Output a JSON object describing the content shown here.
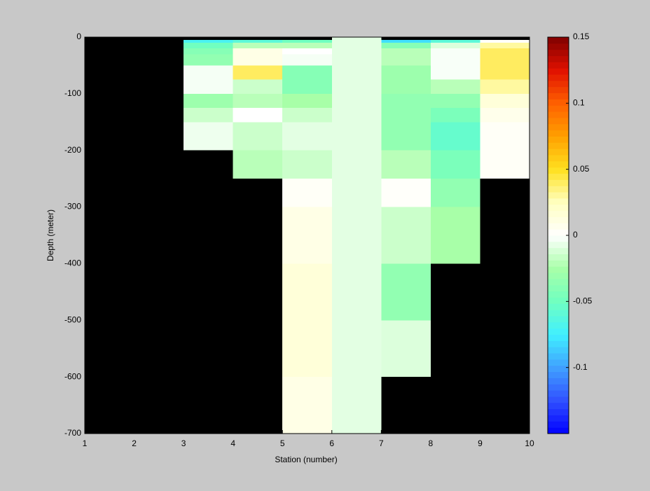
{
  "chart_data": {
    "type": "heatmap",
    "xlabel": "Station (number)",
    "ylabel": "Depth (meter)",
    "x": [
      1,
      2,
      3,
      4,
      5,
      6,
      7,
      8,
      9,
      10
    ],
    "y": [
      0,
      -5,
      -10,
      -20,
      -30,
      -50,
      -75,
      -100,
      -125,
      -150,
      -200,
      -250,
      -300,
      -400,
      -500,
      -600,
      -700
    ],
    "z": [
      [
        null,
        null,
        null,
        null,
        null,
        -0.008,
        null,
        null,
        null
      ],
      [
        null,
        null,
        -0.07,
        -0.06,
        -0.05,
        -0.008,
        -0.08,
        -0.06,
        0.002
      ],
      [
        null,
        null,
        -0.05,
        -0.02,
        -0.02,
        -0.008,
        -0.04,
        -0.01,
        0.03
      ],
      [
        null,
        null,
        -0.04,
        0.01,
        0,
        -0.008,
        -0.02,
        -0.002,
        0.04
      ],
      [
        null,
        null,
        -0.035,
        0.01,
        -0.003,
        -0.008,
        -0.02,
        -0.002,
        0.04
      ],
      [
        null,
        null,
        -0.003,
        0.04,
        -0.04,
        -0.008,
        -0.03,
        -0.002,
        0.04
      ],
      [
        null,
        null,
        -0.003,
        -0.015,
        -0.04,
        -0.008,
        -0.03,
        -0.02,
        0.03
      ],
      [
        null,
        null,
        -0.03,
        -0.02,
        -0.025,
        -0.008,
        -0.035,
        -0.035,
        0.015
      ],
      [
        null,
        null,
        -0.015,
        0,
        -0.015,
        -0.008,
        -0.035,
        -0.045,
        0.008
      ],
      [
        null,
        null,
        -0.005,
        -0.015,
        -0.008,
        -0.008,
        -0.035,
        -0.055,
        0.003
      ],
      [
        null,
        null,
        null,
        -0.02,
        -0.015,
        -0.008,
        -0.02,
        -0.045,
        0.003
      ],
      [
        null,
        null,
        null,
        null,
        0.003,
        -0.008,
        0.002,
        -0.035,
        null
      ],
      [
        null,
        null,
        null,
        null,
        0.01,
        -0.008,
        -0.015,
        -0.025,
        null
      ],
      [
        null,
        null,
        null,
        null,
        0.015,
        -0.008,
        -0.035,
        null,
        null
      ],
      [
        null,
        null,
        null,
        null,
        0.015,
        -0.008,
        -0.01,
        null,
        null
      ],
      [
        null,
        null,
        null,
        null,
        0.01,
        -0.008,
        null,
        null,
        null
      ]
    ],
    "xlim": [
      1,
      10
    ],
    "xticks": [
      1,
      2,
      3,
      4,
      5,
      6,
      7,
      8,
      9,
      10
    ],
    "ylim": [
      -700,
      0
    ],
    "yticks": [
      0,
      -100,
      -200,
      -300,
      -400,
      -500,
      -600,
      -700
    ],
    "clim": [
      -0.15,
      0.15
    ],
    "cticks": [
      -0.1,
      -0.05,
      0,
      0.05,
      0.1,
      0.15
    ],
    "colormap": [
      "#0000ff",
      "#3050ff",
      "#40a0ff",
      "#40f0ff",
      "#70ffc0",
      "#a8ffa8",
      "#ffffff",
      "#ffffc0",
      "#ffe020",
      "#ffa000",
      "#ff6000",
      "#e01000",
      "#800000"
    ],
    "nan_color": "#000000"
  }
}
